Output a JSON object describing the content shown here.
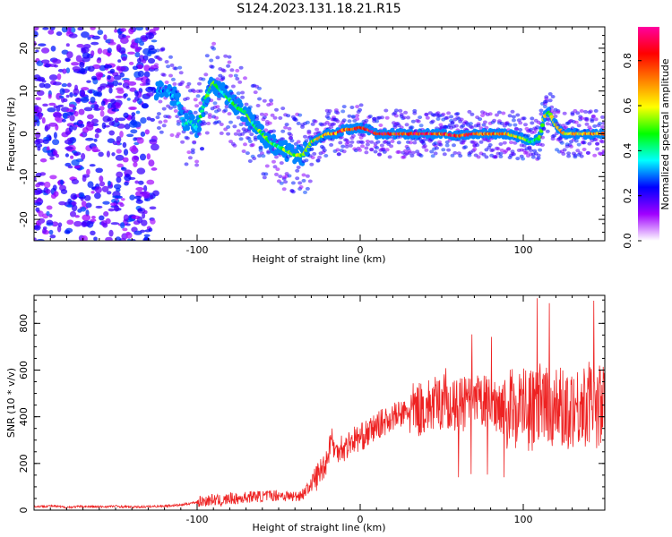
{
  "title": "S124.2023.131.18.21.R15",
  "colorbar": {
    "label": "Normalized spectral amplitude",
    "ticks": [
      0.0,
      0.2,
      0.4,
      0.6,
      0.8
    ],
    "tick_labels": [
      "0.0",
      "0.2",
      "0.4",
      "0.6",
      "0.8"
    ],
    "range": [
      0,
      0.95
    ],
    "stops": [
      "#ffffff",
      "#a000ff",
      "#0000ff",
      "#00ffff",
      "#00ff00",
      "#ffff00",
      "#ff8000",
      "#ff0000",
      "#ff00a0"
    ]
  },
  "chart_data": [
    {
      "type": "heatmap",
      "xlabel": "Height of straight line (km)",
      "ylabel": "Frequency (Hz)",
      "xlim": [
        -200,
        150
      ],
      "ylim": [
        -25,
        25
      ],
      "xticks": [
        -100,
        0,
        100
      ],
      "xtick_labels": [
        "-100",
        "0",
        "100"
      ],
      "yticks": [
        -20,
        -10,
        0,
        10,
        20
      ],
      "ytick_labels": [
        "-20",
        "-10",
        "0",
        "10",
        "20"
      ],
      "ridge": {
        "x": [
          -125,
          -118,
          -112,
          -108,
          -104,
          -100,
          -95,
          -90,
          -85,
          -80,
          -75,
          -70,
          -65,
          -60,
          -55,
          -50,
          -45,
          -40,
          -35,
          -30,
          -25,
          -20,
          -15,
          -10,
          -5,
          0,
          5,
          10,
          20,
          30,
          40,
          50,
          60,
          70,
          80,
          90,
          100,
          105,
          110,
          113,
          116,
          120,
          125,
          130,
          140,
          150
        ],
        "y": [
          10,
          10,
          8,
          2,
          3,
          1,
          8,
          12,
          10,
          8,
          6,
          5,
          2,
          0,
          -2,
          -3,
          -4,
          -5,
          -5,
          -2,
          -1,
          0,
          0,
          1,
          1,
          1.5,
          1,
          0,
          0,
          0,
          0,
          0,
          -0.5,
          0,
          0,
          0,
          -1,
          -2,
          -1,
          4,
          5,
          2,
          0,
          0,
          0,
          0
        ],
        "amplitude": [
          0.3,
          0.3,
          0.35,
          0.35,
          0.4,
          0.4,
          0.5,
          0.5,
          0.45,
          0.45,
          0.5,
          0.5,
          0.5,
          0.55,
          0.5,
          0.5,
          0.55,
          0.6,
          0.6,
          0.6,
          0.65,
          0.7,
          0.8,
          0.85,
          0.8,
          0.85,
          0.9,
          0.9,
          0.9,
          0.85,
          0.9,
          0.85,
          0.85,
          0.8,
          0.8,
          0.7,
          0.6,
          0.5,
          0.55,
          0.6,
          0.6,
          0.7,
          0.7,
          0.7,
          0.75,
          0.75
        ]
      }
    },
    {
      "type": "line",
      "xlabel": "Height of straight line (km)",
      "ylabel": "SNR (10 * v/v)",
      "xlim": [
        -200,
        150
      ],
      "ylim": [
        0,
        920
      ],
      "xticks": [
        -100,
        0,
        100
      ],
      "xtick_labels": [
        "-100",
        "0",
        "100"
      ],
      "yticks": [
        0,
        200,
        400,
        600,
        800
      ],
      "ytick_labels": [
        "0",
        "200",
        "400",
        "600",
        "800"
      ],
      "color": "#ee2222",
      "series": [
        {
          "x": [
            -200,
            -190,
            -180,
            -170,
            -160,
            -150,
            -140,
            -130,
            -120,
            -110,
            -100,
            -95,
            -90,
            -85,
            -80,
            -75,
            -70,
            -65,
            -60,
            -55,
            -50,
            -45,
            -40,
            -35,
            -30,
            -25,
            -20,
            -18,
            -15,
            -12,
            -10,
            -5,
            0,
            5,
            10,
            15,
            20,
            25,
            30,
            35,
            40,
            45,
            50,
            53,
            55,
            60,
            65,
            70,
            75,
            80,
            85,
            90,
            95,
            100,
            105,
            108,
            112,
            115,
            118,
            120,
            125,
            130,
            135,
            140,
            145,
            150
          ],
          "y": [
            15,
            18,
            12,
            16,
            14,
            17,
            13,
            15,
            18,
            22,
            35,
            40,
            45,
            38,
            50,
            48,
            55,
            60,
            58,
            62,
            65,
            60,
            58,
            70,
            110,
            160,
            220,
            320,
            240,
            280,
            260,
            300,
            310,
            330,
            360,
            380,
            400,
            410,
            420,
            430,
            440,
            450,
            460,
            500,
            430,
            440,
            460,
            450,
            470,
            440,
            460,
            430,
            440,
            450,
            420,
            460,
            440,
            430,
            450,
            440,
            430,
            450,
            440,
            460,
            440,
            450
          ]
        }
      ]
    }
  ]
}
